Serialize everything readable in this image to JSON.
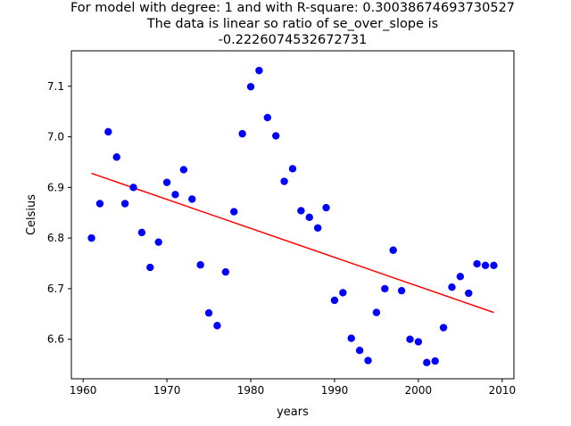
{
  "chart_data": {
    "type": "scatter",
    "title_lines": [
      "For model with degree: 1 and with R-square: 0.30038674693730527",
      "The data is linear so ratio of se_over_slope is",
      "-0.2226074532672731"
    ],
    "xlabel": "years",
    "ylabel": "Celsius",
    "xlim": [
      1958.6,
      2011.4
    ],
    "ylim": [
      6.522,
      7.17
    ],
    "xticks": [
      1960,
      1970,
      1980,
      1990,
      2000,
      2010
    ],
    "yticks": [
      6.6,
      6.7,
      6.8,
      6.9,
      7.0,
      7.1
    ],
    "ytick_labels": [
      "6.6",
      "6.7",
      "6.8",
      "6.9",
      "7.0",
      "7.1"
    ],
    "grid": false,
    "series": [
      {
        "marker_color": "#0000ff",
        "x": [
          1961,
          1962,
          1963,
          1964,
          1965,
          1966,
          1967,
          1968,
          1969,
          1970,
          1971,
          1972,
          1973,
          1974,
          1975,
          1976,
          1977,
          1978,
          1979,
          1980,
          1981,
          1982,
          1983,
          1984,
          1985,
          1986,
          1987,
          1988,
          1989,
          1990,
          1991,
          1992,
          1993,
          1994,
          1995,
          1996,
          1997,
          1998,
          1999,
          2000,
          2001,
          2002,
          2003,
          2004,
          2005,
          2006,
          2007,
          2008,
          2009
        ],
        "y": [
          6.8,
          6.868,
          7.01,
          6.96,
          6.868,
          6.9,
          6.811,
          6.742,
          6.792,
          6.91,
          6.886,
          6.935,
          6.877,
          6.747,
          6.652,
          6.627,
          6.733,
          6.852,
          7.006,
          7.099,
          7.131,
          7.038,
          7.002,
          6.912,
          6.937,
          6.854,
          6.841,
          6.82,
          6.86,
          6.677,
          6.692,
          6.602,
          6.578,
          6.558,
          6.653,
          6.7,
          6.776,
          6.696,
          6.6,
          6.595,
          6.554,
          6.557,
          6.623,
          6.703,
          6.724,
          6.691,
          6.749,
          6.746,
          6.746
        ]
      }
    ],
    "fit": {
      "line_color": "#ff0000",
      "x": [
        1961,
        2009
      ],
      "y": [
        6.928,
        6.653
      ]
    }
  }
}
